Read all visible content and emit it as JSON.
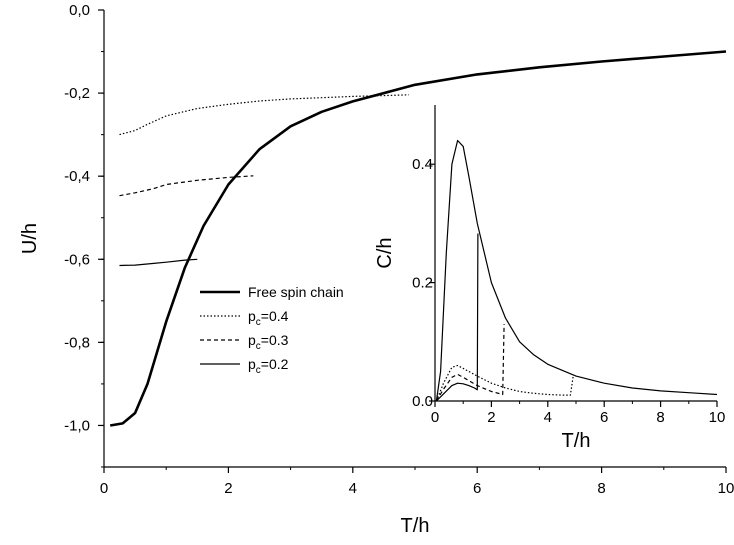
{
  "chart_data": [
    {
      "type": "line",
      "xlabel": "T/h",
      "ylabel": "U/h",
      "xlim": [
        0,
        10
      ],
      "ylim": [
        -1.1,
        0.0
      ],
      "xticks": [
        "0",
        "2",
        "4",
        "6",
        "8",
        "10"
      ],
      "yticks": [
        "0,0",
        "-0,2",
        "-0,4",
        "-0,6",
        "-0,8",
        "-1,0"
      ],
      "grid": false,
      "legend_position": "center-left",
      "legend": [
        {
          "label": "Free spin chain",
          "sub": "",
          "style": "thick"
        },
        {
          "label": "p",
          "sub": "c",
          "value": "=0.4",
          "style": "dotted"
        },
        {
          "label": "p",
          "sub": "c",
          "value": "=0.3",
          "style": "dashed"
        },
        {
          "label": "p",
          "sub": "c",
          "value": "=0.2",
          "style": "thin"
        }
      ],
      "series": [
        {
          "name": "Free spin chain",
          "style": "thick",
          "x": [
            0.1,
            0.3,
            0.5,
            0.7,
            1.0,
            1.3,
            1.6,
            2.0,
            2.5,
            3.0,
            3.5,
            4.0,
            5.0,
            6.0,
            7.0,
            8.0,
            9.0,
            10.0
          ],
          "y": [
            -1.0,
            -0.995,
            -0.97,
            -0.9,
            -0.75,
            -0.62,
            -0.52,
            -0.42,
            -0.335,
            -0.28,
            -0.245,
            -0.22,
            -0.18,
            -0.155,
            -0.138,
            -0.124,
            -0.112,
            -0.1
          ]
        },
        {
          "name": "p_c=0.4",
          "style": "dotted",
          "x": [
            0.25,
            0.5,
            0.7,
            1.0,
            1.5,
            2.0,
            2.5,
            3.0,
            3.5,
            4.0,
            4.5,
            4.9
          ],
          "y": [
            -0.3,
            -0.29,
            -0.275,
            -0.255,
            -0.237,
            -0.227,
            -0.219,
            -0.214,
            -0.211,
            -0.208,
            -0.206,
            -0.204
          ]
        },
        {
          "name": "p_c=0.3",
          "style": "dashed",
          "x": [
            0.25,
            0.5,
            0.8,
            1.0,
            1.5,
            2.0,
            2.4
          ],
          "y": [
            -0.447,
            -0.44,
            -0.43,
            -0.42,
            -0.41,
            -0.403,
            -0.399
          ]
        },
        {
          "name": "p_c=0.2",
          "style": "thin",
          "x": [
            0.25,
            0.5,
            0.8,
            1.0,
            1.3,
            1.5
          ],
          "y": [
            -0.615,
            -0.614,
            -0.61,
            -0.607,
            -0.602,
            -0.6
          ]
        }
      ]
    },
    {
      "type": "line",
      "xlabel": "T/h",
      "ylabel": "C/h",
      "xlim": [
        0,
        10
      ],
      "ylim": [
        0,
        0.5
      ],
      "xticks": [
        "0",
        "2",
        "4",
        "6",
        "8",
        "10"
      ],
      "yticks": [
        "0.0",
        "0.2",
        "0.4"
      ],
      "grid": false,
      "series": [
        {
          "name": "Free spin chain",
          "style": "solid",
          "x": [
            0.05,
            0.2,
            0.4,
            0.6,
            0.8,
            1.0,
            1.2,
            1.5,
            2.0,
            2.5,
            3.0,
            3.5,
            4.0,
            5.0,
            6.0,
            7.0,
            8.0,
            9.0,
            10.0
          ],
          "y": [
            0.0,
            0.05,
            0.25,
            0.4,
            0.44,
            0.43,
            0.38,
            0.3,
            0.2,
            0.14,
            0.1,
            0.078,
            0.062,
            0.042,
            0.03,
            0.022,
            0.017,
            0.014,
            0.011
          ]
        },
        {
          "name": "p_c=0.4",
          "style": "dotted",
          "x": [
            0.05,
            0.3,
            0.6,
            0.8,
            1.0,
            1.5,
            2.0,
            2.5,
            3.0,
            3.5,
            4.0,
            4.5,
            4.8,
            4.9
          ],
          "y": [
            0.0,
            0.03,
            0.057,
            0.06,
            0.055,
            0.042,
            0.03,
            0.022,
            0.016,
            0.013,
            0.011,
            0.01,
            0.01,
            0.042
          ]
        },
        {
          "name": "p_c=0.3",
          "style": "dashed",
          "x": [
            0.05,
            0.3,
            0.6,
            0.8,
            1.0,
            1.5,
            2.0,
            2.4,
            2.45
          ],
          "y": [
            0.0,
            0.02,
            0.04,
            0.045,
            0.04,
            0.026,
            0.016,
            0.011,
            0.13
          ]
        },
        {
          "name": "p_c=0.2",
          "style": "thin",
          "x": [
            0.05,
            0.3,
            0.6,
            0.8,
            1.0,
            1.2,
            1.4,
            1.5,
            1.52
          ],
          "y": [
            0.0,
            0.012,
            0.026,
            0.03,
            0.029,
            0.026,
            0.022,
            0.019,
            0.283
          ]
        }
      ]
    }
  ]
}
